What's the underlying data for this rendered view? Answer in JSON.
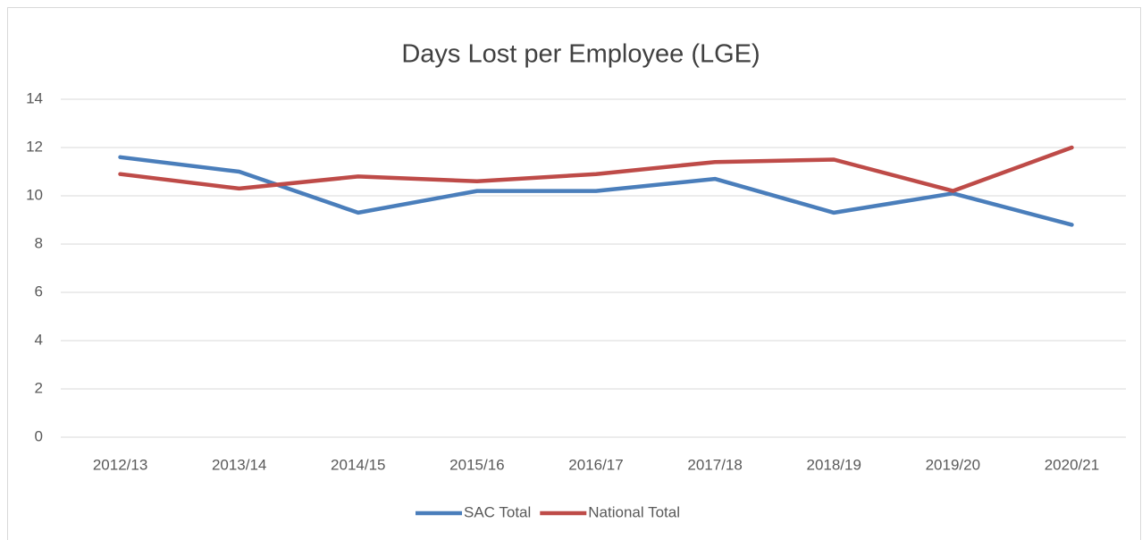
{
  "chart_data": {
    "type": "line",
    "title": "Days Lost per Employee (LGE)",
    "categories": [
      "2012/13",
      "2013/14",
      "2014/15",
      "2015/16",
      "2016/17",
      "2017/18",
      "2018/19",
      "2019/20",
      "2020/21"
    ],
    "series": [
      {
        "name": "SAC Total",
        "color": "#4a7ebb",
        "values": [
          11.6,
          11.0,
          9.3,
          10.2,
          10.2,
          10.7,
          9.3,
          10.1,
          8.8
        ]
      },
      {
        "name": "National Total",
        "color": "#be4b48",
        "values": [
          10.9,
          10.3,
          10.8,
          10.6,
          10.9,
          11.4,
          11.5,
          10.2,
          12.0
        ]
      }
    ],
    "ylim": [
      0,
      14
    ],
    "yticks": [
      0,
      2,
      4,
      6,
      8,
      10,
      12,
      14
    ],
    "grid": true,
    "legend": "bottom"
  }
}
